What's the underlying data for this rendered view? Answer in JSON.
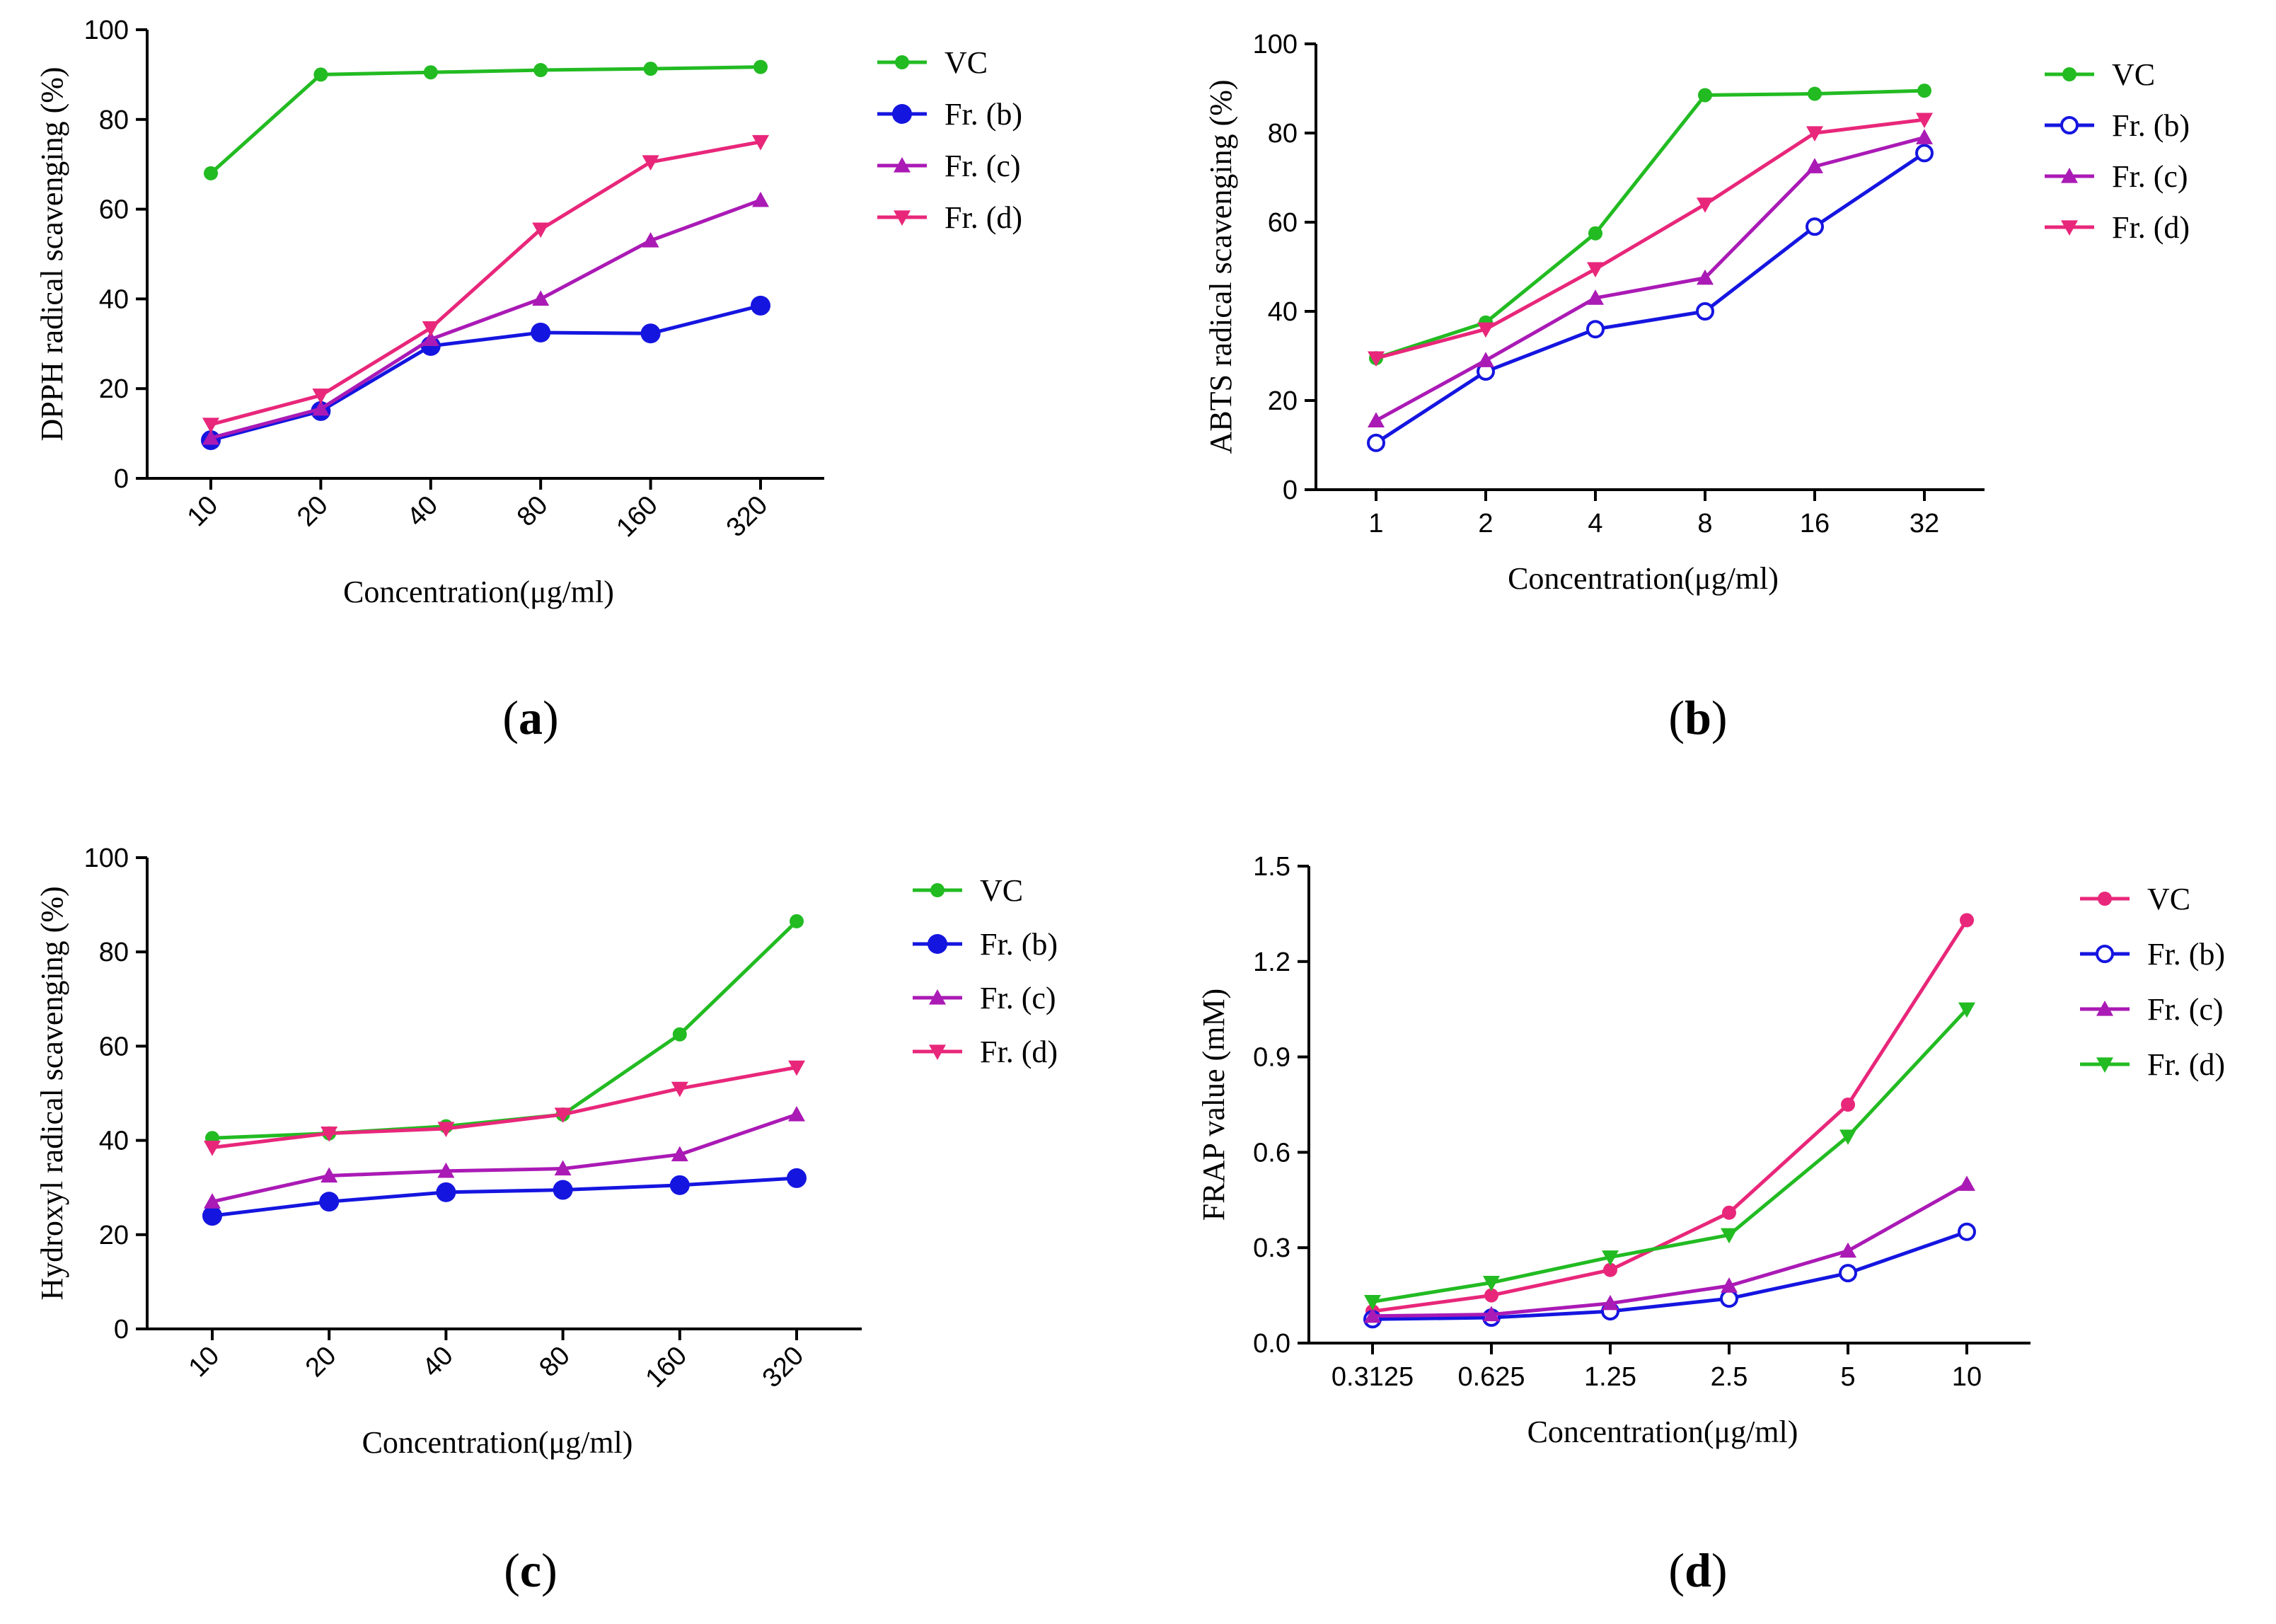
{
  "chart_data": [
    {
      "type": "line",
      "panel_label": "a",
      "ylabel": "DPPH radical scavenging (%)",
      "xlabel": "Concentration(μg/ml)",
      "categories": [
        "10",
        "20",
        "40",
        "80",
        "160",
        "320"
      ],
      "rotate_ticks": true,
      "ylim": [
        0,
        100
      ],
      "yticks": [
        "0",
        "20",
        "40",
        "60",
        "80",
        "100"
      ],
      "series": [
        {
          "name": "VC",
          "color": "#22bb22",
          "marker": "circle-small",
          "values": [
            68,
            90,
            90.5,
            91,
            91.3,
            91.7
          ]
        },
        {
          "name": "Fr. (b)",
          "color": "#1515e0",
          "marker": "circle-large",
          "values": [
            8.5,
            15,
            29.5,
            32.5,
            32.3,
            38.5
          ]
        },
        {
          "name": "Fr. (c)",
          "color": "#aa1ab5",
          "marker": "triangle-up",
          "values": [
            9,
            15.5,
            31,
            40,
            53,
            62
          ]
        },
        {
          "name": "Fr. (d)",
          "color": "#e8277a",
          "marker": "triangle-down",
          "values": [
            12,
            18.5,
            33.5,
            55.5,
            70.5,
            75
          ]
        }
      ]
    },
    {
      "type": "line",
      "panel_label": "b",
      "ylabel": "ABTS radical scavenging (%)",
      "xlabel": "Concentration(μg/ml)",
      "categories": [
        "1",
        "2",
        "4",
        "8",
        "16",
        "32"
      ],
      "rotate_ticks": false,
      "ylim": [
        0,
        100
      ],
      "yticks": [
        "0",
        "20",
        "40",
        "60",
        "80",
        "100"
      ],
      "series": [
        {
          "name": "VC",
          "color": "#22bb22",
          "marker": "circle-small",
          "values": [
            29.5,
            37.5,
            57.5,
            88.5,
            88.8,
            89.5
          ]
        },
        {
          "name": "Fr. (b)",
          "color": "#1515e0",
          "marker": "circle-open",
          "values": [
            10.5,
            26.5,
            36,
            40,
            59,
            75.5
          ]
        },
        {
          "name": "Fr. (c)",
          "color": "#aa1ab5",
          "marker": "triangle-up",
          "values": [
            15.5,
            29,
            43,
            47.5,
            72.5,
            79
          ]
        },
        {
          "name": "Fr. (d)",
          "color": "#e8277a",
          "marker": "triangle-down",
          "values": [
            29.5,
            36,
            49.5,
            64,
            80,
            83
          ]
        }
      ]
    },
    {
      "type": "line",
      "panel_label": "c",
      "ylabel": "Hydroxyl radical scavenging (%)",
      "xlabel": "Concentration(μg/ml)",
      "categories": [
        "10",
        "20",
        "40",
        "80",
        "160",
        "320"
      ],
      "rotate_ticks": true,
      "ylim": [
        0,
        100
      ],
      "yticks": [
        "0",
        "20",
        "40",
        "60",
        "80",
        "100"
      ],
      "series": [
        {
          "name": "VC",
          "color": "#22bb22",
          "marker": "circle-small",
          "values": [
            40.5,
            41.5,
            43,
            45.5,
            62.5,
            86.5
          ]
        },
        {
          "name": "Fr. (b)",
          "color": "#1515e0",
          "marker": "circle-large",
          "values": [
            24,
            27,
            29,
            29.5,
            30.5,
            32
          ]
        },
        {
          "name": "Fr. (c)",
          "color": "#aa1ab5",
          "marker": "triangle-up",
          "values": [
            27,
            32.5,
            33.5,
            34,
            37,
            45.5
          ]
        },
        {
          "name": "Fr. (d)",
          "color": "#e8277a",
          "marker": "triangle-down",
          "values": [
            38.5,
            41.5,
            42.5,
            45.5,
            51,
            55.5
          ]
        }
      ]
    },
    {
      "type": "line",
      "panel_label": "d",
      "ylabel": "FRAP value (mM)",
      "xlabel": "Concentration(μg/ml)",
      "categories": [
        "0.3125",
        "0.625",
        "1.25",
        "2.5",
        "5",
        "10"
      ],
      "rotate_ticks": false,
      "ylim": [
        0,
        1.5
      ],
      "yticks": [
        "0.0",
        "0.3",
        "0.6",
        "0.9",
        "1.2",
        "1.5"
      ],
      "series": [
        {
          "name": "VC",
          "color": "#e8277a",
          "marker": "circle-small",
          "values": [
            0.1,
            0.15,
            0.23,
            0.41,
            0.75,
            1.33
          ]
        },
        {
          "name": "Fr. (b)",
          "color": "#1515e0",
          "marker": "circle-open",
          "values": [
            0.075,
            0.08,
            0.1,
            0.14,
            0.22,
            0.35
          ]
        },
        {
          "name": "Fr. (c)",
          "color": "#aa1ab5",
          "marker": "triangle-up",
          "values": [
            0.085,
            0.09,
            0.125,
            0.18,
            0.29,
            0.5
          ]
        },
        {
          "name": "Fr. (d)",
          "color": "#22bb22",
          "marker": "triangle-down",
          "values": [
            0.13,
            0.19,
            0.27,
            0.34,
            0.65,
            1.05
          ]
        }
      ]
    }
  ]
}
